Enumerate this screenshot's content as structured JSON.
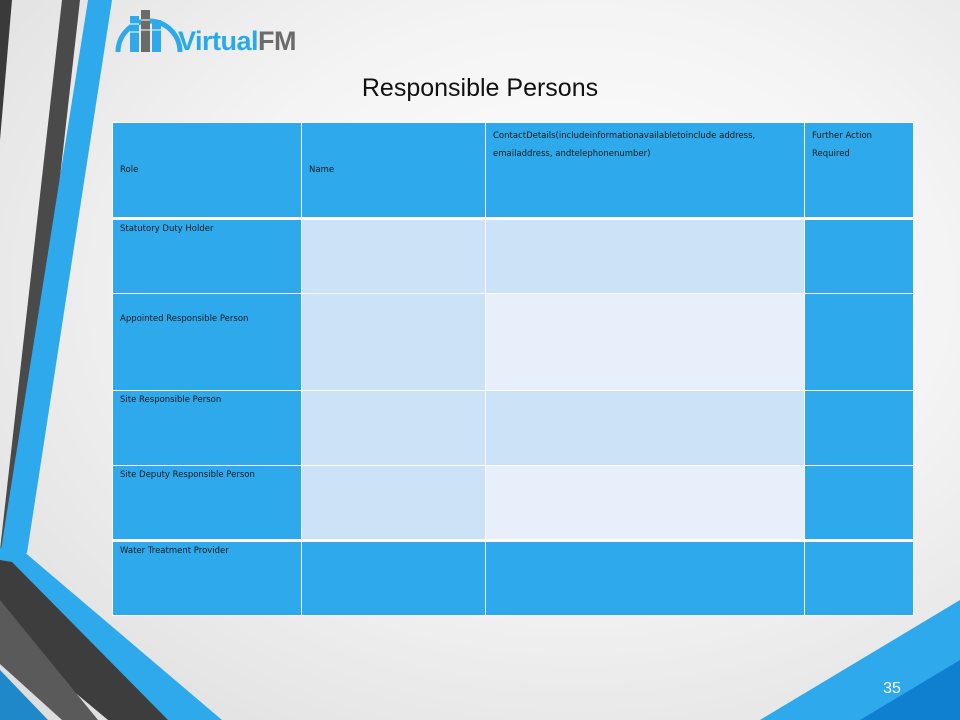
{
  "logo": {
    "text_virtual": "Virtual",
    "text_fm": "FM"
  },
  "title": "Responsible Persons",
  "table": {
    "headers": [
      "Role",
      "Name",
      "ContactDetails(includeinformationavailabletoinclude address, emailaddress, andtelephonenumber)",
      "Further Action Required"
    ],
    "rows": [
      {
        "role": "Statutory Duty Holder",
        "name": "",
        "contact": "",
        "action": ""
      },
      {
        "role": "Appointed Responsible Person",
        "name": "",
        "contact": "",
        "action": ""
      },
      {
        "role": "Site Responsible Person",
        "name": "",
        "contact": "",
        "action": ""
      },
      {
        "role": "Site Deputy Responsible Person",
        "name": "",
        "contact": "",
        "action": ""
      },
      {
        "role": "Water Treatment Provider",
        "name": "",
        "contact": "",
        "action": ""
      }
    ]
  },
  "page_number": "35",
  "colors": {
    "cell_blue": "#2ea9ec",
    "cell_light": "#cce3f7",
    "cell_lighter": "#e7f0fa",
    "stripe_dark": "#444444",
    "stripe_blue": "#29a9e8"
  }
}
